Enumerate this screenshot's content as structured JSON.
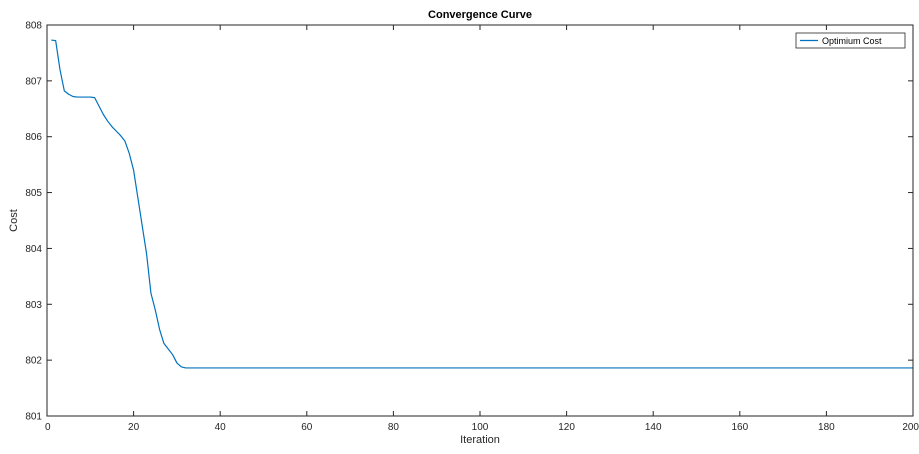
{
  "chart_data": {
    "type": "line",
    "title": "Convergence Curve",
    "xlabel": "Iteration",
    "ylabel": "Cost",
    "xlim": [
      0,
      200
    ],
    "ylim": [
      801,
      808
    ],
    "xticks": [
      0,
      20,
      40,
      60,
      80,
      100,
      120,
      140,
      160,
      180,
      200
    ],
    "yticks": [
      801,
      802,
      803,
      804,
      805,
      806,
      807,
      808
    ],
    "grid": false,
    "box": true,
    "legend_position": "top-right",
    "line_color": "#0072bd",
    "series": [
      {
        "name": "Optimium Cost",
        "x": [
          1,
          2,
          3,
          4,
          5,
          6,
          7,
          8,
          9,
          10,
          11,
          12,
          13,
          14,
          15,
          16,
          17,
          18,
          19,
          20,
          21,
          22,
          23,
          24,
          25,
          26,
          27,
          28,
          29,
          30,
          31,
          32,
          33,
          34,
          35,
          40,
          50,
          60,
          80,
          100,
          120,
          140,
          160,
          180,
          200
        ],
        "y": [
          807.73,
          807.72,
          807.2,
          806.82,
          806.76,
          806.72,
          806.71,
          806.71,
          806.71,
          806.71,
          806.7,
          806.55,
          806.4,
          806.28,
          806.18,
          806.1,
          806.02,
          805.92,
          805.7,
          805.4,
          804.9,
          804.4,
          803.9,
          803.2,
          802.9,
          802.55,
          802.3,
          802.2,
          802.1,
          801.95,
          801.88,
          801.86,
          801.86,
          801.86,
          801.86,
          801.86,
          801.86,
          801.86,
          801.86,
          801.86,
          801.86,
          801.86,
          801.86,
          801.86,
          801.86
        ]
      }
    ]
  }
}
